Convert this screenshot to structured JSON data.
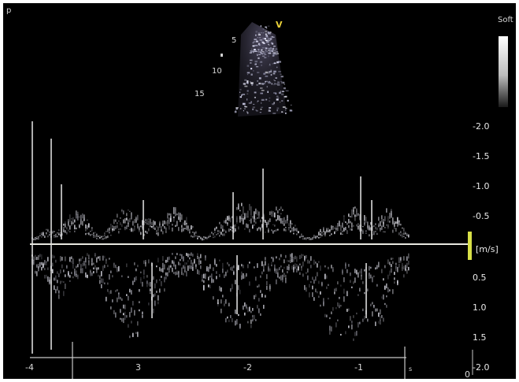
{
  "top_left_mark": "p",
  "corner_label": "Soft",
  "sector_view_label": "V",
  "depth_markers": [
    "5",
    "10",
    "15"
  ],
  "velocity_unit": "[m/s]",
  "velocity_ticks": [
    "-2.0",
    "-1.5",
    "-1.0",
    "-0.5",
    "0.5",
    "1.0",
    "1.5",
    "-2.0"
  ],
  "time_ticks": [
    "-4",
    "3",
    "-2",
    "-1"
  ],
  "time_unit": "s",
  "time_zero": "0",
  "colors": {
    "background": "#000000",
    "baseline": "#e8e8e0",
    "scale_marker": "#d8e048",
    "sector_label": "#e8d038"
  }
}
